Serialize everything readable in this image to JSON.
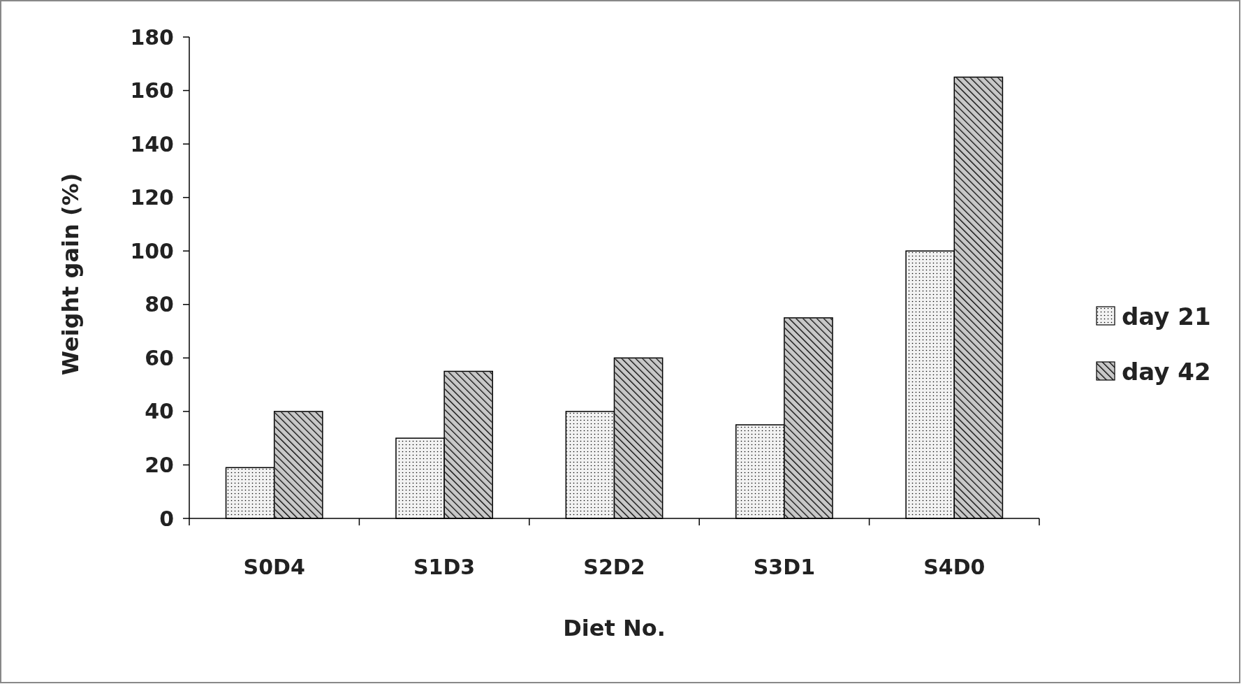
{
  "chart_data": {
    "type": "bar",
    "xlabel": "Diet No.",
    "ylabel": "Weight gain (%)",
    "categories": [
      "S0D4",
      "S1D3",
      "S2D2",
      "S3D1",
      "S4D0"
    ],
    "series": [
      {
        "name": "day 21",
        "color": "#f2f2f2",
        "values": [
          19,
          30,
          40,
          35,
          100
        ]
      },
      {
        "name": "day 42",
        "color": "#c8c8c8",
        "values": [
          40,
          55,
          60,
          75,
          165
        ]
      }
    ],
    "ylim": [
      0,
      180
    ],
    "yticks": [
      0,
      20,
      40,
      60,
      80,
      100,
      120,
      140,
      160,
      180
    ],
    "grid": false,
    "legend": "right"
  }
}
